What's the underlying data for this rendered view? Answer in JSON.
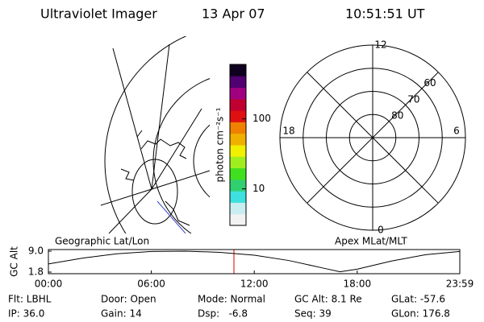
{
  "header": {
    "title": "Ultraviolet Imager",
    "date": "13 Apr 07",
    "time": "10:51:51 UT"
  },
  "colorbar": {
    "label": "photon cm⁻²s⁻¹",
    "log": true,
    "lim": [
      3,
      600
    ],
    "ticks": [
      10,
      100
    ],
    "colors": [
      "#f2f2f2",
      "#c8eef0",
      "#40e0e0",
      "#30d070",
      "#40e020",
      "#a0ee20",
      "#f0f000",
      "#f0b000",
      "#f08000",
      "#e01010",
      "#c00030",
      "#a00080",
      "#500070",
      "#100020"
    ]
  },
  "polar": {
    "mlt_ticks": [
      12,
      18,
      6,
      0
    ],
    "lat_ticks": [
      80,
      70,
      60
    ],
    "lat_lim": [
      90,
      50
    ]
  },
  "map_label": "Geographic Lat/Lon",
  "apex_label": "Apex MLat/MLT",
  "chart_data": {
    "type": "line",
    "y_label": "GC Alt",
    "x": [
      0,
      2,
      4,
      6,
      8,
      10,
      12,
      14,
      16,
      17,
      18,
      20,
      22,
      23.98
    ],
    "values": [
      4.6,
      6.6,
      8.1,
      8.9,
      9.0,
      8.6,
      7.6,
      5.8,
      3.2,
      1.9,
      2.8,
      5.6,
      7.8,
      8.9
    ],
    "color": "#000000",
    "xlim": [
      0,
      23.98
    ],
    "xticks": [
      {
        "value": 0,
        "label": "00:00"
      },
      {
        "value": 6,
        "label": "06:00"
      },
      {
        "value": 12,
        "label": "12:00"
      },
      {
        "value": 18,
        "label": "18:00"
      },
      {
        "value": 23.98,
        "label": "23:59"
      }
    ],
    "ylim": [
      1.8,
      9.0
    ],
    "yticks": [
      {
        "value": 1.8,
        "label": "1.8"
      },
      {
        "value": 9.0,
        "label": "9.0"
      }
    ]
  },
  "footer": [
    [
      "Flt: LBHL",
      "Door: Open",
      "Mode: Normal",
      "GC Alt: 8.1 Re",
      "GLat: -57.6"
    ],
    [
      "IP: 36.0",
      "Gain: 14",
      "Dsp:   -6.8",
      "Seq: 39",
      "GLon: 176.8"
    ]
  ]
}
